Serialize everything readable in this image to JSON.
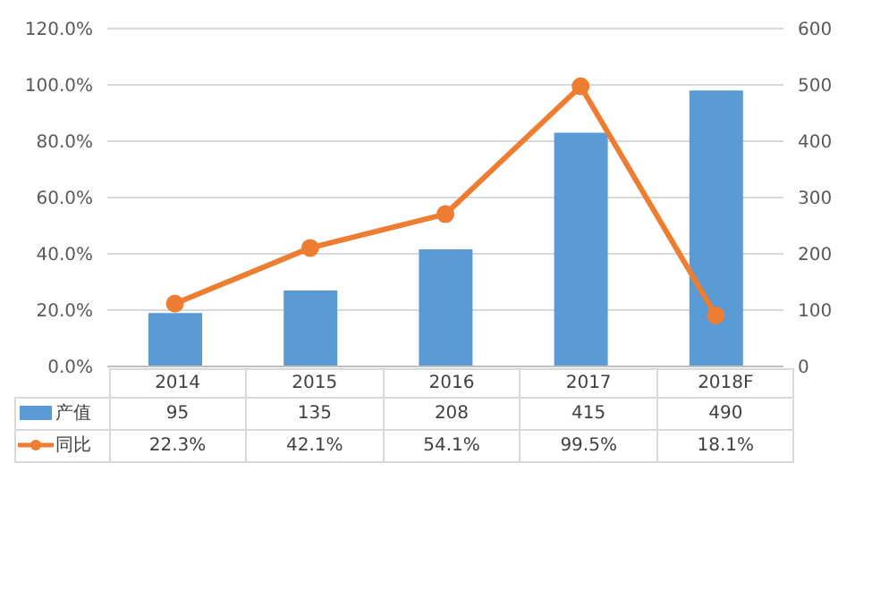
{
  "chart_data": {
    "type": "bar",
    "categories": [
      "2014",
      "2015",
      "2016",
      "2017",
      "2018F"
    ],
    "series": [
      {
        "name": "产值",
        "axis": "y2",
        "color": "#5b9bd5",
        "values": [
          95,
          135,
          208,
          415,
          490
        ],
        "value_labels": [
          "95",
          "135",
          "208",
          "415",
          "490"
        ]
      },
      {
        "name": "同比",
        "type": "line",
        "axis": "y",
        "color": "#ed7d31",
        "values": [
          22.3,
          42.1,
          54.1,
          99.5,
          18.1
        ],
        "value_labels": [
          "22.3%",
          "42.1%",
          "54.1%",
          "99.5%",
          "18.1%"
        ]
      }
    ],
    "ylim": [
      0,
      120
    ],
    "yticks": [
      {
        "value": 0,
        "label": "0.0%"
      },
      {
        "value": 20,
        "label": "20.0%"
      },
      {
        "value": 40,
        "label": "40.0%"
      },
      {
        "value": 60,
        "label": "60.0%"
      },
      {
        "value": 80,
        "label": "80.0%"
      },
      {
        "value": 100,
        "label": "100.0%"
      },
      {
        "value": 120,
        "label": "120.0%"
      }
    ],
    "y2lim": [
      0,
      600
    ],
    "y2ticks": [
      0,
      100,
      200,
      300,
      400,
      500,
      600
    ],
    "grid": "y",
    "legend": "bottom",
    "marker": "circle"
  }
}
